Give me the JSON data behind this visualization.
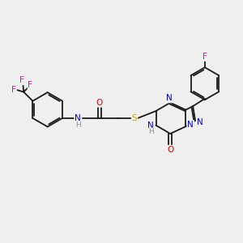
{
  "background_color": "#efefef",
  "bond_color": "#1a1a1a",
  "atom_colors": {
    "N": "#0000dd",
    "O": "#dd0000",
    "S": "#bbaa00",
    "F": "#ff00aa",
    "H": "#7a9a9a",
    "C": "#1a1a1a"
  },
  "figsize": [
    3.0,
    3.0
  ],
  "dpi": 100
}
